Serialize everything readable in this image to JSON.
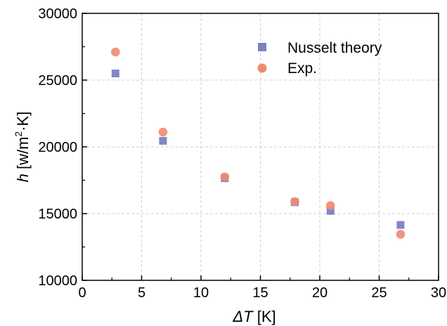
{
  "chart_data": {
    "type": "scatter",
    "xlabel": {
      "symbol": "ΔT",
      "unit": " [K]"
    },
    "ylabel": {
      "symbol": "h",
      "unit_prefix": " [w/m",
      "unit_sup": "2",
      "unit_suffix": "·K]"
    },
    "xlim": [
      0,
      30
    ],
    "ylim": [
      10000,
      30000
    ],
    "x_ticks": [
      0,
      5,
      10,
      15,
      20,
      25,
      30
    ],
    "y_ticks": [
      10000,
      15000,
      20000,
      25000,
      30000
    ],
    "grid": true,
    "legend_position": "top-right",
    "series": [
      {
        "name": "Nusselt theory",
        "marker": "square",
        "color": "#7B80C6",
        "points": [
          {
            "x": 2.8,
            "y": 25500
          },
          {
            "x": 6.8,
            "y": 20450
          },
          {
            "x": 12.0,
            "y": 17650
          },
          {
            "x": 17.9,
            "y": 15850
          },
          {
            "x": 20.9,
            "y": 15200
          },
          {
            "x": 26.8,
            "y": 14150
          }
        ]
      },
      {
        "name": "Exp.",
        "marker": "circle",
        "color": "#F08A70",
        "points": [
          {
            "x": 2.8,
            "y": 27100
          },
          {
            "x": 6.8,
            "y": 21100
          },
          {
            "x": 12.0,
            "y": 17750
          },
          {
            "x": 17.9,
            "y": 15900
          },
          {
            "x": 20.9,
            "y": 15600
          },
          {
            "x": 26.8,
            "y": 13450
          }
        ]
      }
    ]
  }
}
